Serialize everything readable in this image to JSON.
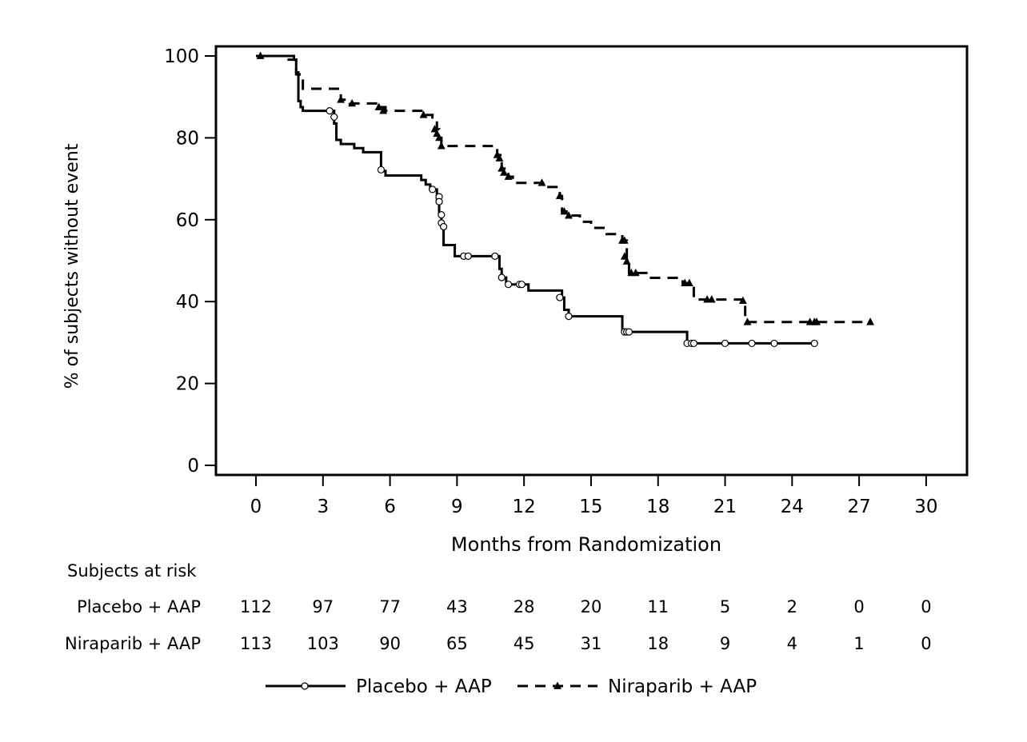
{
  "chart_data": {
    "type": "line",
    "subtype": "kaplan-meier",
    "xlabel": "Months from Randomization",
    "ylabel": "% of subjects without event",
    "xlim": [
      0,
      30
    ],
    "ylim": [
      0,
      100
    ],
    "x_ticks": [
      0,
      3,
      6,
      9,
      12,
      15,
      18,
      21,
      24,
      27,
      30
    ],
    "y_ticks": [
      0,
      20,
      40,
      60,
      80,
      100
    ],
    "grid": false,
    "legend": {
      "placement": "bottom-center"
    },
    "series": [
      {
        "name": "Placebo + AAP",
        "line_style": "solid",
        "marker": "open-circle",
        "color": "#000000",
        "steps": [
          [
            0,
            100
          ],
          [
            1.7,
            99.1
          ],
          [
            1.8,
            96
          ],
          [
            1.9,
            89
          ],
          [
            2.0,
            87.5
          ],
          [
            2.1,
            86.6
          ],
          [
            3.5,
            83.5
          ],
          [
            3.6,
            79.5
          ],
          [
            3.8,
            78.5
          ],
          [
            4.4,
            77.5
          ],
          [
            4.8,
            76.5
          ],
          [
            5.6,
            71.9
          ],
          [
            5.8,
            70.8
          ],
          [
            7.4,
            69.7
          ],
          [
            7.6,
            68.6
          ],
          [
            7.8,
            67.4
          ],
          [
            8.1,
            64.4
          ],
          [
            8.2,
            61.2
          ],
          [
            8.3,
            58.3
          ],
          [
            8.4,
            53.8
          ],
          [
            8.9,
            51.1
          ],
          [
            10.9,
            48.0
          ],
          [
            11.0,
            45.9
          ],
          [
            11.2,
            44.2
          ],
          [
            12.2,
            42.7
          ],
          [
            13.7,
            41.0
          ],
          [
            13.8,
            38.0
          ],
          [
            14.0,
            36.4
          ],
          [
            16.4,
            32.6
          ],
          [
            19.3,
            29.8
          ],
          [
            25.0,
            29.8
          ]
        ],
        "censored": [
          [
            3.3,
            86.6
          ],
          [
            3.5,
            85.1
          ],
          [
            5.6,
            72.2
          ],
          [
            7.9,
            67.4
          ],
          [
            8.2,
            65.6
          ],
          [
            8.2,
            64.4
          ],
          [
            8.3,
            61.2
          ],
          [
            8.3,
            59.2
          ],
          [
            8.4,
            58.3
          ],
          [
            9.3,
            51.1
          ],
          [
            9.5,
            51.1
          ],
          [
            10.7,
            51.1
          ],
          [
            11.0,
            45.9
          ],
          [
            11.3,
            44.2
          ],
          [
            11.8,
            44.2
          ],
          [
            11.9,
            44.2
          ],
          [
            13.6,
            41.0
          ],
          [
            14.0,
            36.4
          ],
          [
            16.5,
            32.6
          ],
          [
            16.6,
            32.6
          ],
          [
            16.7,
            32.6
          ],
          [
            19.3,
            29.8
          ],
          [
            19.5,
            29.8
          ],
          [
            19.6,
            29.8
          ],
          [
            21.0,
            29.8
          ],
          [
            22.2,
            29.8
          ],
          [
            23.2,
            29.8
          ],
          [
            25.0,
            29.8
          ]
        ]
      },
      {
        "name": "Niraparib + AAP",
        "line_style": "dashed",
        "marker": "filled-triangle",
        "color": "#000000",
        "steps": [
          [
            0,
            100
          ],
          [
            1.2,
            99.1
          ],
          [
            1.8,
            95.5
          ],
          [
            2.1,
            92.0
          ],
          [
            3.8,
            89.3
          ],
          [
            4.2,
            88.4
          ],
          [
            5.5,
            87.5
          ],
          [
            5.8,
            86.6
          ],
          [
            7.6,
            85.6
          ],
          [
            7.9,
            84.5
          ],
          [
            8.1,
            82.1
          ],
          [
            8.2,
            80.0
          ],
          [
            8.3,
            78.0
          ],
          [
            10.8,
            75.8
          ],
          [
            11.0,
            72.5
          ],
          [
            11.3,
            70.5
          ],
          [
            11.5,
            69.0
          ],
          [
            12.9,
            68.0
          ],
          [
            13.6,
            65.8
          ],
          [
            13.7,
            62.0
          ],
          [
            13.9,
            61.0
          ],
          [
            14.5,
            59.5
          ],
          [
            15.0,
            58.0
          ],
          [
            15.7,
            56.5
          ],
          [
            16.4,
            54.9
          ],
          [
            16.6,
            49.8
          ],
          [
            16.7,
            47.0
          ],
          [
            17.6,
            45.8
          ],
          [
            19.1,
            44.5
          ],
          [
            19.6,
            40.5
          ],
          [
            21.8,
            40.2
          ],
          [
            21.9,
            35.0
          ],
          [
            27.5,
            35.0
          ]
        ],
        "censored": [
          [
            0.2,
            100
          ],
          [
            3.8,
            89.3
          ],
          [
            4.3,
            88.4
          ],
          [
            5.5,
            87.5
          ],
          [
            5.7,
            86.6
          ],
          [
            7.5,
            85.6
          ],
          [
            8.0,
            82.1
          ],
          [
            8.1,
            81.0
          ],
          [
            8.2,
            80.0
          ],
          [
            8.3,
            78.0
          ],
          [
            10.8,
            75.8
          ],
          [
            10.9,
            75.0
          ],
          [
            11.0,
            72.5
          ],
          [
            11.1,
            71.5
          ],
          [
            11.3,
            70.5
          ],
          [
            12.8,
            69.0
          ],
          [
            13.6,
            65.8
          ],
          [
            13.8,
            62.0
          ],
          [
            14.0,
            61.0
          ],
          [
            16.4,
            54.9
          ],
          [
            16.5,
            54.9
          ],
          [
            16.5,
            51.0
          ],
          [
            16.6,
            49.8
          ],
          [
            16.8,
            47.0
          ],
          [
            17.0,
            47.0
          ],
          [
            19.2,
            44.5
          ],
          [
            19.4,
            44.5
          ],
          [
            20.2,
            40.5
          ],
          [
            20.4,
            40.5
          ],
          [
            21.8,
            40.2
          ],
          [
            22.0,
            35.0
          ],
          [
            24.8,
            35.0
          ],
          [
            25.0,
            35.0
          ],
          [
            25.1,
            35.0
          ],
          [
            27.5,
            35.0
          ]
        ]
      }
    ],
    "risk_table": {
      "title": "Subjects at risk",
      "times": [
        0,
        3,
        6,
        9,
        12,
        15,
        18,
        21,
        24,
        27,
        30
      ],
      "rows": [
        {
          "label": "Placebo + AAP",
          "values": [
            "112",
            "97",
            "77",
            "43",
            "28",
            "20",
            "11",
            "5",
            "2",
            "0",
            "0"
          ]
        },
        {
          "label": "Niraparib + AAP",
          "values": [
            "113",
            "103",
            "90",
            "65",
            "45",
            "31",
            "18",
            "9",
            "4",
            "1",
            "0"
          ]
        }
      ]
    }
  }
}
